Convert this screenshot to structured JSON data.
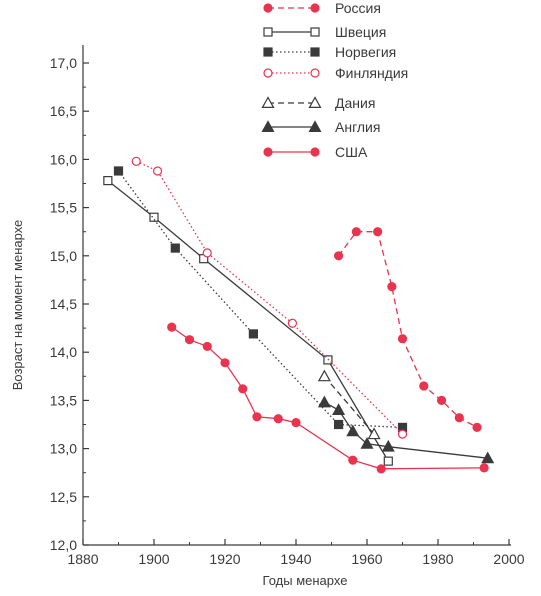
{
  "chart_data": {
    "type": "line",
    "title": "",
    "xlabel": "Годы менархе",
    "ylabel": "Возраст на момент менархе",
    "xlim": [
      1880,
      2000
    ],
    "ylim": [
      12.0,
      17.0
    ],
    "xticks": [
      "1880",
      "1900",
      "1920",
      "1940",
      "1960",
      "1980",
      "2000"
    ],
    "yticks": [
      "12,0",
      "12,5",
      "13,0",
      "13,5",
      "14,0",
      "14,5",
      "15,0",
      "15,5",
      "16,0",
      "16,5",
      "17,0"
    ],
    "grid": false,
    "legend_position": "top-right",
    "series": [
      {
        "name": "Россия",
        "color": "#e8344e",
        "line": "dashed",
        "marker": "circle",
        "filled": true,
        "points": [
          [
            1952,
            15.0
          ],
          [
            1957,
            15.25
          ],
          [
            1963,
            15.25
          ],
          [
            1967,
            14.68
          ],
          [
            1970,
            14.14
          ],
          [
            1976,
            13.65
          ],
          [
            1981,
            13.5
          ],
          [
            1986,
            13.32
          ],
          [
            1991,
            13.22
          ]
        ]
      },
      {
        "name": "Швеция",
        "color": "#3a3a3a",
        "line": "solid",
        "marker": "square",
        "filled": false,
        "points": [
          [
            1887,
            15.78
          ],
          [
            1900,
            15.4
          ],
          [
            1914,
            14.97
          ],
          [
            1949,
            13.92
          ],
          [
            1966,
            12.87
          ]
        ]
      },
      {
        "name": "Норвегия",
        "color": "#3a3a3a",
        "line": "dotted",
        "marker": "square",
        "filled": true,
        "points": [
          [
            1890,
            15.88
          ],
          [
            1906,
            15.08
          ],
          [
            1928,
            14.19
          ],
          [
            1952,
            13.25
          ],
          [
            1970,
            13.22
          ]
        ]
      },
      {
        "name": "Финляндия",
        "color": "#e8344e",
        "line": "dotted",
        "marker": "circle",
        "filled": false,
        "points": [
          [
            1895,
            15.98
          ],
          [
            1901,
            15.88
          ],
          [
            1915,
            15.03
          ],
          [
            1939,
            14.3
          ],
          [
            1970,
            13.15
          ]
        ]
      },
      {
        "name": "Дания",
        "color": "#3a3a3a",
        "line": "dashed",
        "marker": "triangle",
        "filled": false,
        "points": [
          [
            1948,
            13.75
          ],
          [
            1962,
            13.15
          ]
        ]
      },
      {
        "name": "Англия",
        "color": "#3a3a3a",
        "line": "solid",
        "marker": "triangle",
        "filled": true,
        "points": [
          [
            1948,
            13.48
          ],
          [
            1952,
            13.4
          ],
          [
            1956,
            13.18
          ],
          [
            1960,
            13.05
          ],
          [
            1966,
            13.02
          ],
          [
            1994,
            12.9
          ]
        ]
      },
      {
        "name": "США",
        "color": "#e8344e",
        "line": "solid",
        "marker": "circle",
        "filled": true,
        "points": [
          [
            1905,
            14.26
          ],
          [
            1910,
            14.13
          ],
          [
            1915,
            14.06
          ],
          [
            1920,
            13.89
          ],
          [
            1925,
            13.62
          ],
          [
            1929,
            13.33
          ],
          [
            1935,
            13.31
          ],
          [
            1940,
            13.27
          ],
          [
            1956,
            12.88
          ],
          [
            1964,
            12.79
          ],
          [
            1993,
            12.8
          ]
        ]
      }
    ]
  }
}
